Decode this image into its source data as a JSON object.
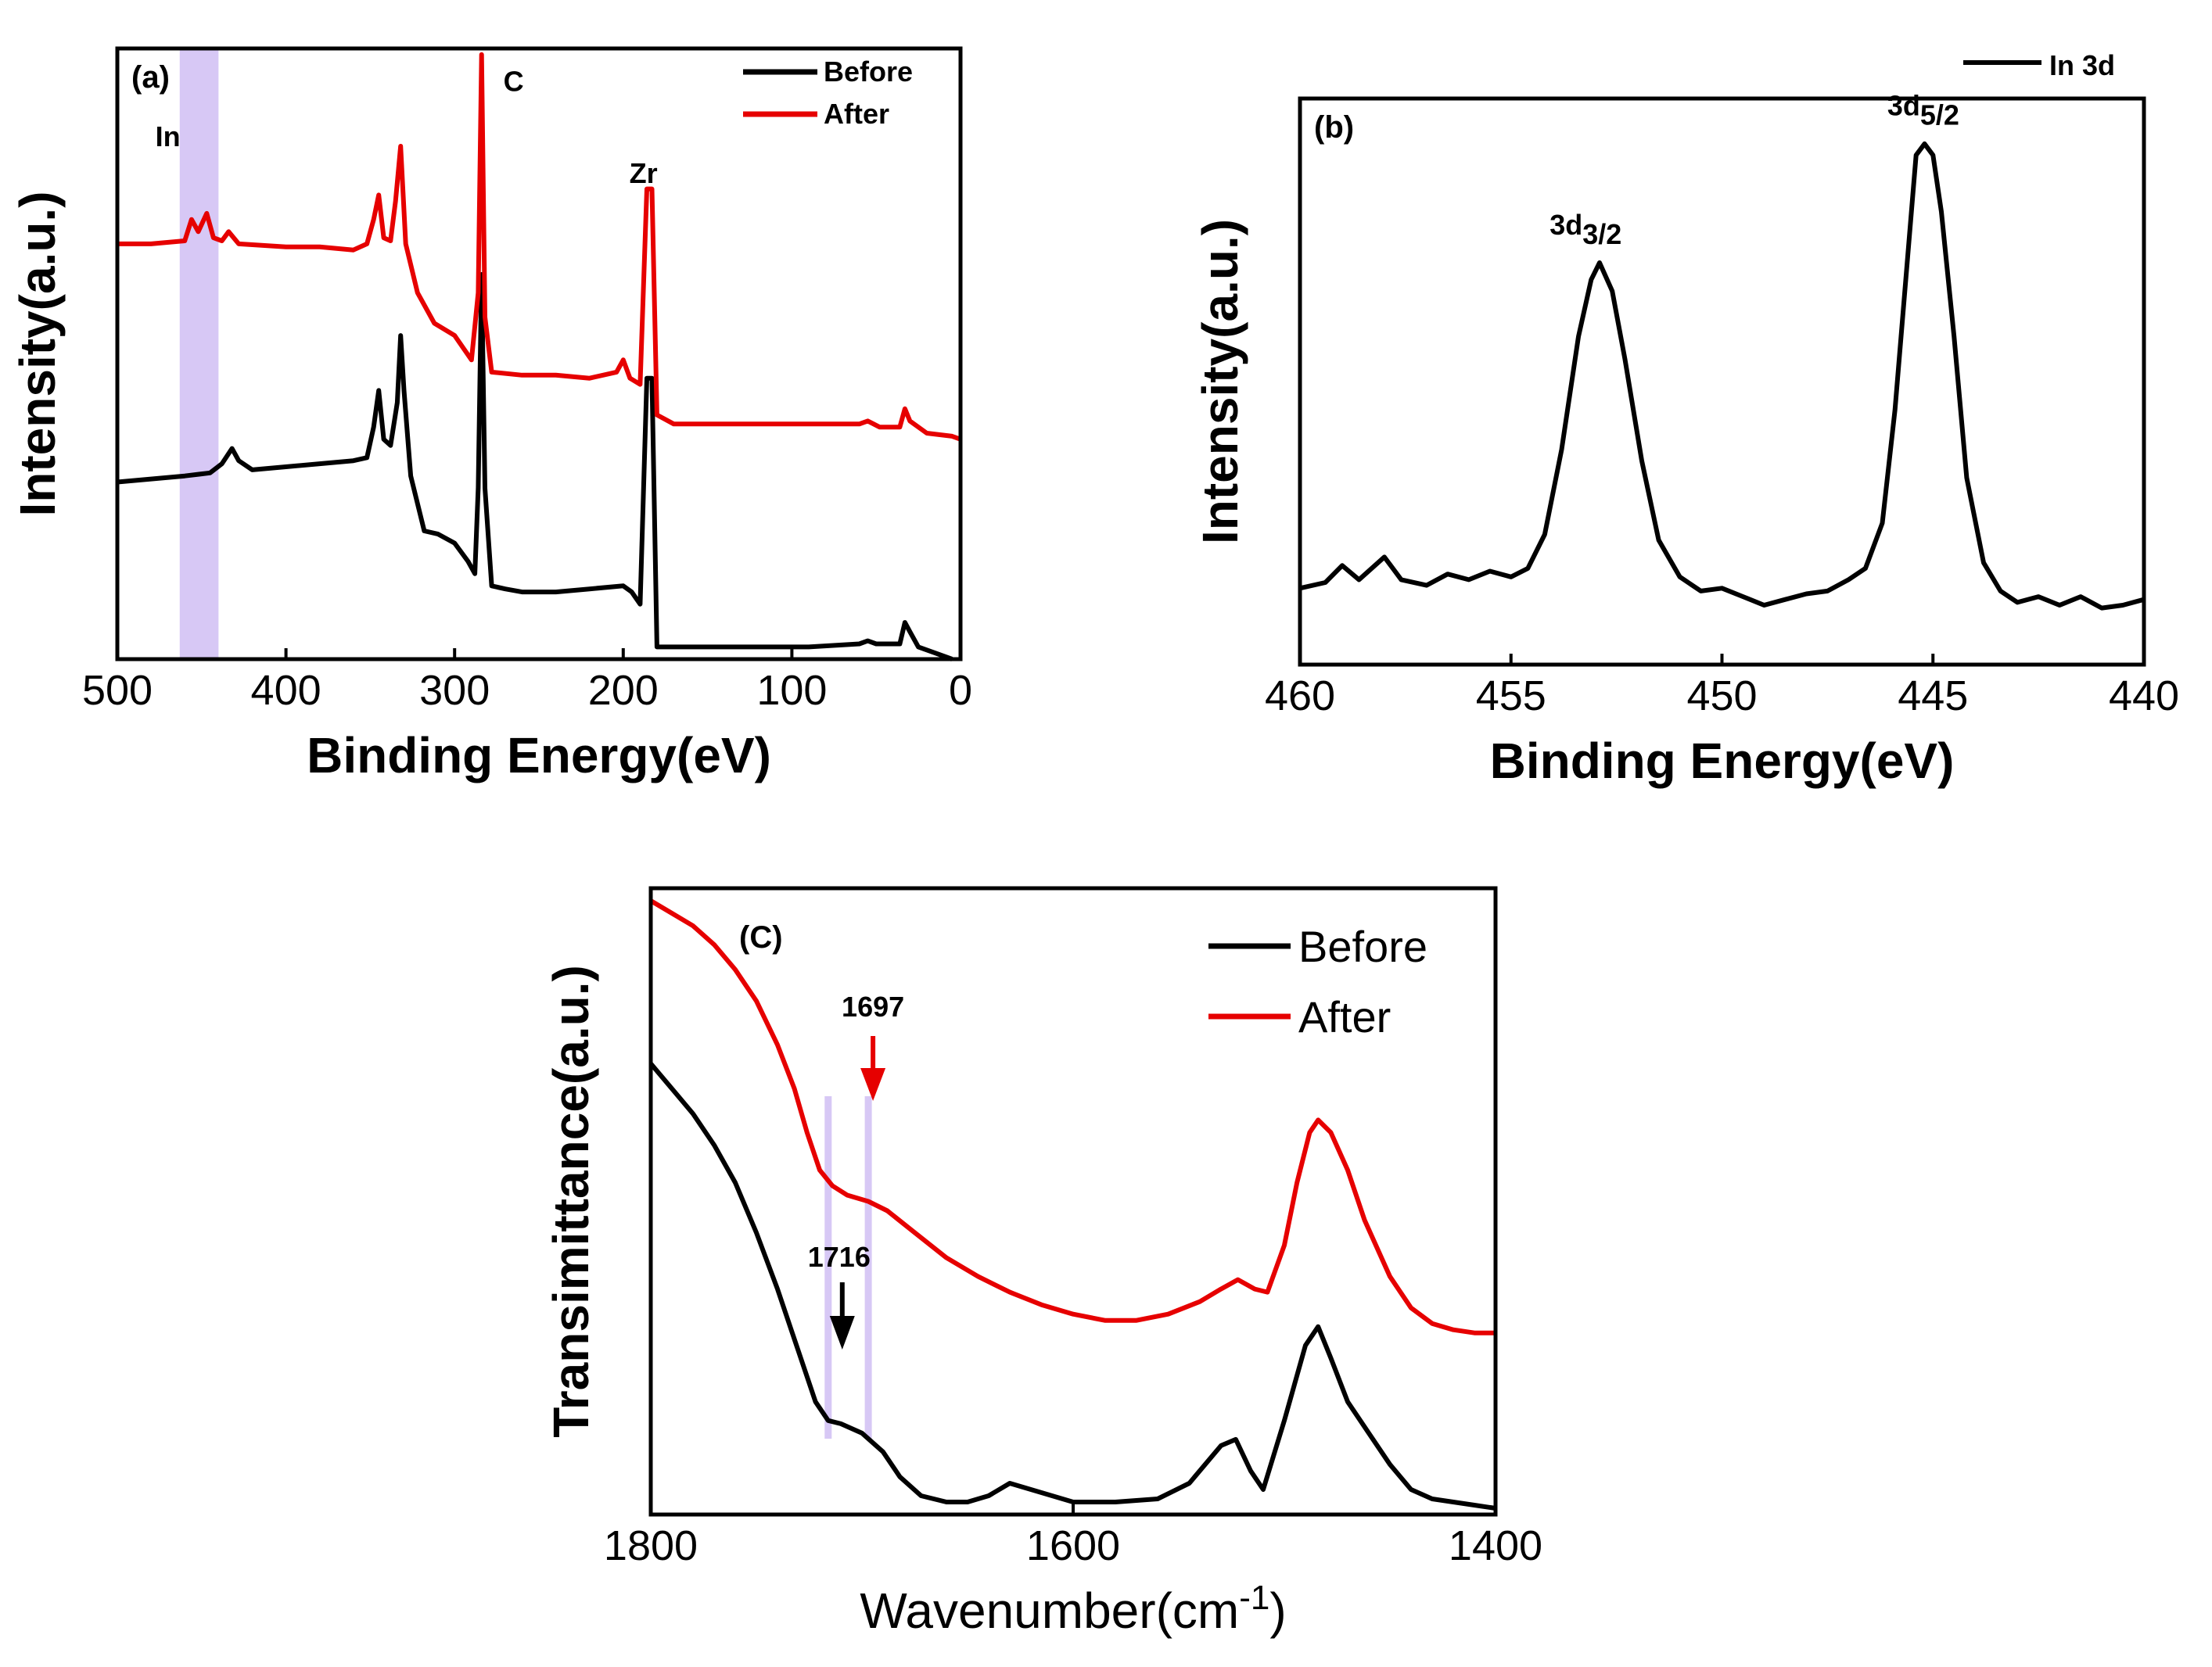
{
  "chart_data": [
    {
      "type": "line",
      "panel_label": "(a)",
      "xlabel": "Binding Energy(eV)",
      "ylabel": "Intensity(a.u.)",
      "xlim": [
        500,
        0
      ],
      "x_reversed": true,
      "xticks": [
        500,
        400,
        300,
        200,
        100,
        0
      ],
      "highlight_band": {
        "from": 463,
        "to": 440,
        "color": "#d7c8f5"
      },
      "annotations": [
        {
          "text": "In",
          "x": 470,
          "y": 0.84
        },
        {
          "text": "C",
          "x": 265,
          "y": 0.93
        },
        {
          "text": "Zr",
          "x": 188,
          "y": 0.78
        }
      ],
      "legend": {
        "placement": "top-right",
        "entries": [
          "Before",
          "After"
        ]
      },
      "series": [
        {
          "name": "Before",
          "color": "#000000",
          "points": [
            [
              500,
              0.29
            ],
            [
              480,
              0.295
            ],
            [
              460,
              0.3
            ],
            [
              445,
              0.305
            ],
            [
              438,
              0.32
            ],
            [
              432,
              0.345
            ],
            [
              428,
              0.325
            ],
            [
              420,
              0.31
            ],
            [
              400,
              0.315
            ],
            [
              380,
              0.32
            ],
            [
              360,
              0.325
            ],
            [
              352,
              0.33
            ],
            [
              348,
              0.38
            ],
            [
              345,
              0.44
            ],
            [
              342,
              0.36
            ],
            [
              338,
              0.35
            ],
            [
              334,
              0.42
            ],
            [
              332,
              0.53
            ],
            [
              330,
              0.44
            ],
            [
              326,
              0.3
            ],
            [
              318,
              0.21
            ],
            [
              310,
              0.205
            ],
            [
              300,
              0.19
            ],
            [
              292,
              0.16
            ],
            [
              288,
              0.14
            ],
            [
              286,
              0.28
            ],
            [
              284,
              0.63
            ],
            [
              282,
              0.28
            ],
            [
              278,
              0.12
            ],
            [
              270,
              0.115
            ],
            [
              260,
              0.11
            ],
            [
              240,
              0.11
            ],
            [
              220,
              0.115
            ],
            [
              200,
              0.12
            ],
            [
              195,
              0.11
            ],
            [
              190,
              0.09
            ],
            [
              186,
              0.46
            ],
            [
              183,
              0.46
            ],
            [
              180,
              0.02
            ],
            [
              170,
              0.02
            ],
            [
              150,
              0.02
            ],
            [
              120,
              0.02
            ],
            [
              90,
              0.02
            ],
            [
              60,
              0.025
            ],
            [
              55,
              0.03
            ],
            [
              50,
              0.025
            ],
            [
              36,
              0.025
            ],
            [
              33,
              0.06
            ],
            [
              30,
              0.045
            ],
            [
              25,
              0.02
            ],
            [
              15,
              0.01
            ],
            [
              5,
              0.0
            ]
          ]
        },
        {
          "name": "After",
          "color": "#e60000",
          "points": [
            [
              500,
              0.68
            ],
            [
              480,
              0.68
            ],
            [
              460,
              0.685
            ],
            [
              456,
              0.72
            ],
            [
              452,
              0.7
            ],
            [
              447,
              0.73
            ],
            [
              443,
              0.69
            ],
            [
              438,
              0.685
            ],
            [
              434,
              0.7
            ],
            [
              428,
              0.68
            ],
            [
              400,
              0.675
            ],
            [
              380,
              0.675
            ],
            [
              360,
              0.67
            ],
            [
              352,
              0.68
            ],
            [
              348,
              0.72
            ],
            [
              345,
              0.76
            ],
            [
              342,
              0.69
            ],
            [
              338,
              0.685
            ],
            [
              335,
              0.75
            ],
            [
              332,
              0.84
            ],
            [
              329,
              0.68
            ],
            [
              322,
              0.6
            ],
            [
              312,
              0.55
            ],
            [
              300,
              0.53
            ],
            [
              290,
              0.49
            ],
            [
              286,
              0.6
            ],
            [
              284,
              0.99
            ],
            [
              282,
              0.56
            ],
            [
              278,
              0.47
            ],
            [
              260,
              0.465
            ],
            [
              240,
              0.465
            ],
            [
              220,
              0.46
            ],
            [
              204,
              0.47
            ],
            [
              200,
              0.49
            ],
            [
              196,
              0.46
            ],
            [
              190,
              0.45
            ],
            [
              186,
              0.77
            ],
            [
              183,
              0.77
            ],
            [
              180,
              0.4
            ],
            [
              170,
              0.385
            ],
            [
              150,
              0.385
            ],
            [
              100,
              0.385
            ],
            [
              60,
              0.385
            ],
            [
              55,
              0.39
            ],
            [
              48,
              0.38
            ],
            [
              36,
              0.38
            ],
            [
              33,
              0.41
            ],
            [
              30,
              0.39
            ],
            [
              20,
              0.37
            ],
            [
              5,
              0.365
            ],
            [
              0,
              0.36
            ]
          ]
        }
      ]
    },
    {
      "type": "line",
      "panel_label": "(b)",
      "xlabel": "Binding Energy(eV)",
      "ylabel": "Intensity(a.u.)",
      "xlim": [
        460,
        440
      ],
      "x_reversed": true,
      "xticks": [
        460,
        455,
        450,
        445,
        440
      ],
      "annotations": [
        {
          "base": "3d",
          "sub": "3/2",
          "x": 453.6,
          "y": 0.76
        },
        {
          "base": "3d",
          "sub": "5/2",
          "x": 445.6,
          "y": 0.97
        }
      ],
      "legend": {
        "placement": "top-right",
        "entries": [
          "In 3d"
        ]
      },
      "series": [
        {
          "name": "In 3d",
          "color": "#000000",
          "points": [
            [
              460,
              0.135
            ],
            [
              459.4,
              0.145
            ],
            [
              459,
              0.175
            ],
            [
              458.6,
              0.15
            ],
            [
              458,
              0.19
            ],
            [
              457.6,
              0.15
            ],
            [
              457,
              0.14
            ],
            [
              456.5,
              0.16
            ],
            [
              456,
              0.15
            ],
            [
              455.5,
              0.165
            ],
            [
              455,
              0.155
            ],
            [
              454.6,
              0.17
            ],
            [
              454.2,
              0.23
            ],
            [
              453.8,
              0.38
            ],
            [
              453.4,
              0.58
            ],
            [
              453.1,
              0.68
            ],
            [
              452.9,
              0.71
            ],
            [
              452.6,
              0.66
            ],
            [
              452.3,
              0.54
            ],
            [
              451.9,
              0.36
            ],
            [
              451.5,
              0.22
            ],
            [
              451,
              0.155
            ],
            [
              450.5,
              0.13
            ],
            [
              450,
              0.135
            ],
            [
              449.5,
              0.12
            ],
            [
              449,
              0.105
            ],
            [
              448.5,
              0.115
            ],
            [
              448,
              0.125
            ],
            [
              447.5,
              0.13
            ],
            [
              447,
              0.15
            ],
            [
              446.6,
              0.17
            ],
            [
              446.2,
              0.25
            ],
            [
              445.9,
              0.45
            ],
            [
              445.6,
              0.72
            ],
            [
              445.4,
              0.9
            ],
            [
              445.2,
              0.92
            ],
            [
              445,
              0.9
            ],
            [
              444.8,
              0.8
            ],
            [
              444.5,
              0.58
            ],
            [
              444.2,
              0.33
            ],
            [
              443.8,
              0.18
            ],
            [
              443.4,
              0.13
            ],
            [
              443,
              0.11
            ],
            [
              442.5,
              0.12
            ],
            [
              442,
              0.105
            ],
            [
              441.5,
              0.12
            ],
            [
              441,
              0.1
            ],
            [
              440.5,
              0.105
            ],
            [
              440,
              0.115
            ]
          ]
        }
      ]
    },
    {
      "type": "line",
      "panel_label": "(C)",
      "xlabel": "Wavenumber(cm-1)",
      "xlabel_base": "Wavenumber(cm",
      "xlabel_sup": "-1",
      "xlabel_close": ")",
      "ylabel": "Transimittance(a.u.)",
      "xlim": [
        1800,
        1400
      ],
      "x_reversed": true,
      "xticks": [
        1800,
        1600,
        1400
      ],
      "highlight_lines": [
        1716,
        1697
      ],
      "arrows": [
        {
          "text": "1697",
          "x": 1697,
          "color": "#e60000"
        },
        {
          "text": "1716",
          "x": 1716,
          "color": "#000000"
        }
      ],
      "legend": {
        "placement": "top-right",
        "entries": [
          "Before",
          "After"
        ]
      },
      "series": [
        {
          "name": "Before",
          "color": "#000000",
          "points": [
            [
              1800,
              0.72
            ],
            [
              1790,
              0.68
            ],
            [
              1780,
              0.64
            ],
            [
              1770,
              0.59
            ],
            [
              1760,
              0.53
            ],
            [
              1750,
              0.45
            ],
            [
              1740,
              0.36
            ],
            [
              1730,
              0.26
            ],
            [
              1722,
              0.18
            ],
            [
              1716,
              0.15
            ],
            [
              1710,
              0.145
            ],
            [
              1700,
              0.13
            ],
            [
              1690,
              0.1
            ],
            [
              1682,
              0.06
            ],
            [
              1672,
              0.03
            ],
            [
              1660,
              0.02
            ],
            [
              1650,
              0.02
            ],
            [
              1640,
              0.03
            ],
            [
              1630,
              0.05
            ],
            [
              1620,
              0.04
            ],
            [
              1600,
              0.02
            ],
            [
              1580,
              0.02
            ],
            [
              1560,
              0.025
            ],
            [
              1545,
              0.05
            ],
            [
              1530,
              0.11
            ],
            [
              1523,
              0.12
            ],
            [
              1516,
              0.07
            ],
            [
              1510,
              0.04
            ],
            [
              1500,
              0.15
            ],
            [
              1490,
              0.27
            ],
            [
              1484,
              0.3
            ],
            [
              1478,
              0.25
            ],
            [
              1470,
              0.18
            ],
            [
              1460,
              0.13
            ],
            [
              1450,
              0.08
            ],
            [
              1440,
              0.04
            ],
            [
              1430,
              0.025
            ],
            [
              1420,
              0.02
            ],
            [
              1410,
              0.015
            ],
            [
              1400,
              0.01
            ]
          ]
        },
        {
          "name": "After",
          "color": "#e60000",
          "points": [
            [
              1800,
              0.98
            ],
            [
              1790,
              0.96
            ],
            [
              1780,
              0.94
            ],
            [
              1770,
              0.91
            ],
            [
              1760,
              0.87
            ],
            [
              1750,
              0.82
            ],
            [
              1740,
              0.75
            ],
            [
              1732,
              0.68
            ],
            [
              1726,
              0.61
            ],
            [
              1720,
              0.55
            ],
            [
              1714,
              0.525
            ],
            [
              1707,
              0.51
            ],
            [
              1697,
              0.5
            ],
            [
              1688,
              0.485
            ],
            [
              1675,
              0.45
            ],
            [
              1660,
              0.41
            ],
            [
              1645,
              0.38
            ],
            [
              1630,
              0.355
            ],
            [
              1615,
              0.335
            ],
            [
              1600,
              0.32
            ],
            [
              1585,
              0.31
            ],
            [
              1570,
              0.31
            ],
            [
              1555,
              0.32
            ],
            [
              1540,
              0.34
            ],
            [
              1530,
              0.36
            ],
            [
              1522,
              0.375
            ],
            [
              1514,
              0.36
            ],
            [
              1508,
              0.355
            ],
            [
              1500,
              0.43
            ],
            [
              1494,
              0.53
            ],
            [
              1488,
              0.61
            ],
            [
              1484,
              0.63
            ],
            [
              1478,
              0.61
            ],
            [
              1470,
              0.55
            ],
            [
              1462,
              0.47
            ],
            [
              1450,
              0.38
            ],
            [
              1440,
              0.33
            ],
            [
              1430,
              0.305
            ],
            [
              1420,
              0.295
            ],
            [
              1410,
              0.29
            ],
            [
              1400,
              0.29
            ]
          ]
        }
      ]
    }
  ]
}
